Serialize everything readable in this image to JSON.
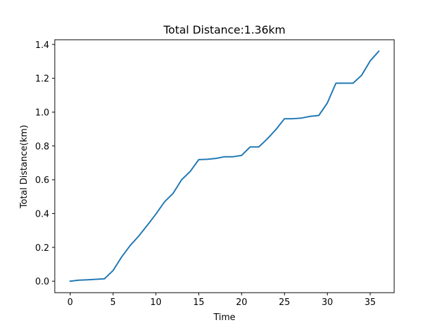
{
  "chart_data": {
    "type": "line",
    "title": "Total Distance:1.36km",
    "xlabel": "Time",
    "ylabel": "Total Distance(km)",
    "xlim": [
      -1.8,
      37.8
    ],
    "ylim": [
      -0.068,
      1.428
    ],
    "xticks": [
      0,
      5,
      10,
      15,
      20,
      25,
      30,
      35
    ],
    "yticks": [
      0.0,
      0.2,
      0.4,
      0.6,
      0.8,
      1.0,
      1.2,
      1.4
    ],
    "xtick_labels": [
      "0",
      "5",
      "10",
      "15",
      "20",
      "25",
      "30",
      "35"
    ],
    "ytick_labels": [
      "0.0",
      "0.2",
      "0.4",
      "0.6",
      "0.8",
      "1.0",
      "1.2",
      "1.4"
    ],
    "grid": false,
    "series": [
      {
        "color": "#1f77b4",
        "x": [
          0,
          1,
          2,
          3,
          4,
          5,
          6,
          7,
          8,
          9,
          10,
          11,
          12,
          13,
          14,
          15,
          16,
          17,
          18,
          19,
          20,
          21,
          22,
          23,
          24,
          25,
          26,
          27,
          28,
          29,
          30,
          31,
          32,
          33,
          34,
          35,
          36
        ],
        "y": [
          0.0,
          0.006,
          0.008,
          0.011,
          0.014,
          0.063,
          0.143,
          0.211,
          0.267,
          0.331,
          0.397,
          0.469,
          0.519,
          0.6,
          0.649,
          0.719,
          0.721,
          0.726,
          0.736,
          0.736,
          0.744,
          0.794,
          0.794,
          0.842,
          0.897,
          0.961,
          0.961,
          0.965,
          0.975,
          0.98,
          1.054,
          1.171,
          1.171,
          1.171,
          1.218,
          1.303,
          1.36
        ]
      }
    ]
  }
}
